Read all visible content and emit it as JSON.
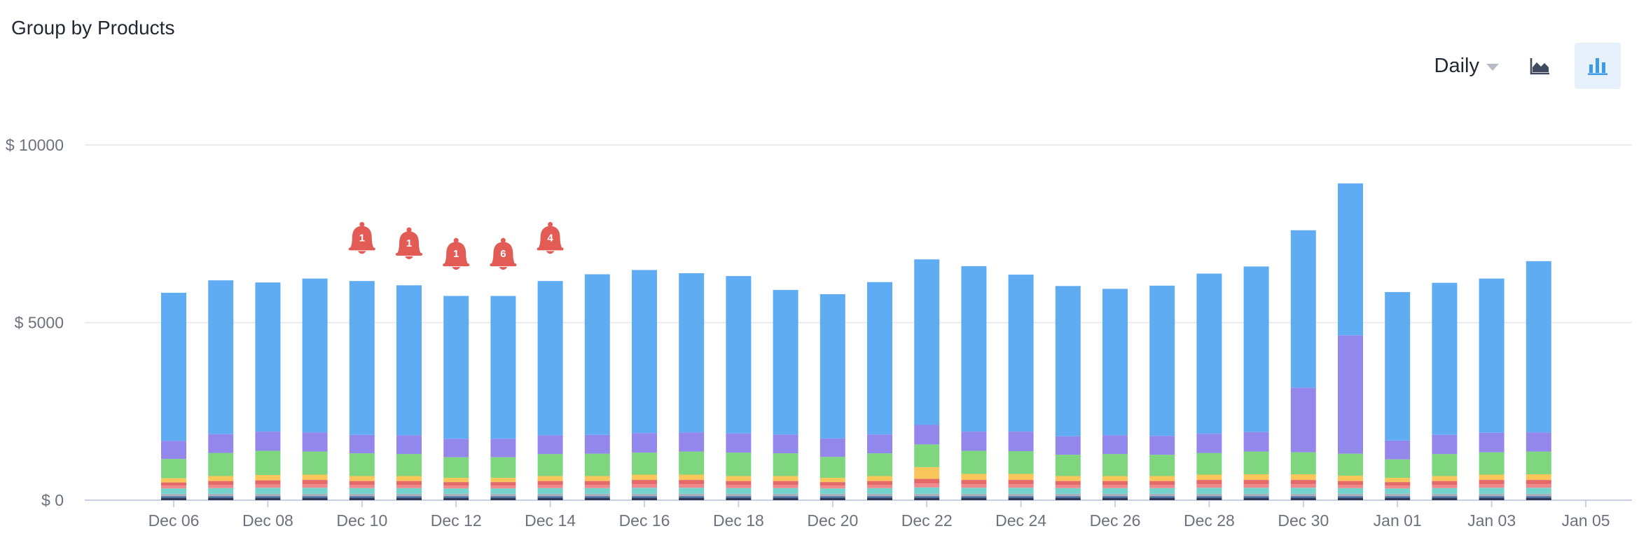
{
  "header": {
    "title": "Group by Products"
  },
  "controls": {
    "period_label": "Daily",
    "area_view_icon": "area-chart-icon",
    "bar_view_icon": "bar-chart-icon",
    "active_view": "bar"
  },
  "chart_data": {
    "type": "bar",
    "stacked": true,
    "title": "",
    "xlabel": "",
    "ylabel": "",
    "ylim": [
      0,
      11000
    ],
    "y_ticks": [
      {
        "value": 0,
        "label": "$ 0"
      },
      {
        "value": 5000,
        "label": "$ 5000"
      },
      {
        "value": 10000,
        "label": "$ 10000"
      }
    ],
    "grid": "horizontal",
    "categories": [
      "Dec 06",
      "Dec 07",
      "Dec 08",
      "Dec 09",
      "Dec 10",
      "Dec 11",
      "Dec 12",
      "Dec 13",
      "Dec 14",
      "Dec 15",
      "Dec 16",
      "Dec 17",
      "Dec 18",
      "Dec 19",
      "Dec 20",
      "Dec 21",
      "Dec 22",
      "Dec 23",
      "Dec 24",
      "Dec 25",
      "Dec 26",
      "Dec 27",
      "Dec 28",
      "Dec 29",
      "Dec 30",
      "Dec 31",
      "Jan 01",
      "Jan 02",
      "Jan 03",
      "Jan 04"
    ],
    "x_tick_labels": [
      {
        "index": 0,
        "label": "Dec 06"
      },
      {
        "index": 2,
        "label": "Dec 08"
      },
      {
        "index": 4,
        "label": "Dec 10"
      },
      {
        "index": 6,
        "label": "Dec 12"
      },
      {
        "index": 8,
        "label": "Dec 14"
      },
      {
        "index": 10,
        "label": "Dec 16"
      },
      {
        "index": 12,
        "label": "Dec 18"
      },
      {
        "index": 14,
        "label": "Dec 20"
      },
      {
        "index": 16,
        "label": "Dec 22"
      },
      {
        "index": 18,
        "label": "Dec 24"
      },
      {
        "index": 20,
        "label": "Dec 26"
      },
      {
        "index": 22,
        "label": "Dec 28"
      },
      {
        "index": 24,
        "label": "Dec 30"
      },
      {
        "index": 26,
        "label": "Jan 01"
      },
      {
        "index": 28,
        "label": "Jan 03"
      },
      {
        "index": 30,
        "label": "Jan 05"
      }
    ],
    "series": [
      {
        "color": "#2f3a57",
        "values": [
          60,
          60,
          60,
          60,
          60,
          60,
          60,
          60,
          60,
          60,
          60,
          60,
          60,
          60,
          60,
          60,
          60,
          60,
          60,
          60,
          60,
          60,
          60,
          60,
          60,
          60,
          60,
          60,
          60,
          60
        ]
      },
      {
        "color": "#4a6fa5",
        "values": [
          50,
          50,
          50,
          50,
          50,
          50,
          50,
          50,
          50,
          50,
          50,
          50,
          50,
          50,
          50,
          50,
          50,
          50,
          50,
          50,
          50,
          50,
          50,
          50,
          50,
          50,
          50,
          50,
          50,
          50
        ]
      },
      {
        "color": "#a9b1bd",
        "values": [
          70,
          70,
          70,
          70,
          70,
          70,
          70,
          70,
          70,
          70,
          70,
          70,
          70,
          70,
          70,
          70,
          70,
          70,
          70,
          70,
          70,
          70,
          70,
          70,
          70,
          70,
          70,
          70,
          70,
          70
        ]
      },
      {
        "color": "#74d4cd",
        "values": [
          150,
          160,
          170,
          170,
          160,
          160,
          150,
          150,
          160,
          160,
          170,
          170,
          160,
          160,
          150,
          160,
          180,
          170,
          170,
          160,
          160,
          160,
          170,
          170,
          170,
          160,
          150,
          160,
          170,
          170
        ]
      },
      {
        "color": "#f0878a",
        "values": [
          80,
          90,
          90,
          100,
          90,
          90,
          80,
          80,
          90,
          90,
          100,
          100,
          90,
          90,
          80,
          90,
          110,
          100,
          100,
          90,
          90,
          90,
          100,
          100,
          100,
          90,
          80,
          90,
          100,
          100
        ]
      },
      {
        "color": "#e46a6a",
        "values": [
          90,
          110,
          120,
          120,
          110,
          110,
          100,
          100,
          110,
          110,
          120,
          120,
          110,
          110,
          100,
          110,
          130,
          120,
          120,
          110,
          110,
          110,
          120,
          120,
          120,
          110,
          100,
          110,
          120,
          120
        ]
      },
      {
        "color": "#f8c65a",
        "values": [
          120,
          140,
          150,
          150,
          140,
          140,
          120,
          120,
          140,
          140,
          150,
          150,
          140,
          140,
          120,
          140,
          330,
          170,
          170,
          140,
          140,
          140,
          150,
          160,
          160,
          150,
          120,
          140,
          150,
          160
        ]
      },
      {
        "color": "#7ed67f",
        "values": [
          540,
          650,
          680,
          650,
          640,
          620,
          580,
          580,
          620,
          630,
          620,
          650,
          660,
          640,
          590,
          640,
          640,
          650,
          640,
          600,
          620,
          600,
          610,
          640,
          620,
          620,
          520,
          620,
          630,
          640
        ]
      },
      {
        "color": "#9487ec",
        "values": [
          510,
          530,
          540,
          540,
          520,
          530,
          520,
          520,
          530,
          530,
          550,
          540,
          540,
          530,
          520,
          530,
          550,
          540,
          550,
          520,
          530,
          530,
          540,
          550,
          1820,
          3330,
          530,
          540,
          550,
          540
        ]
      },
      {
        "color": "#60acf2",
        "values": [
          4170,
          4330,
          4200,
          4330,
          4330,
          4220,
          4020,
          4020,
          4340,
          4520,
          4590,
          4480,
          4430,
          4070,
          4060,
          4290,
          4660,
          4660,
          4420,
          4230,
          4120,
          4230,
          4510,
          4660,
          4430,
          4280,
          4180,
          4280,
          4340,
          4820
        ]
      }
    ],
    "annotations": [
      {
        "index": 4,
        "label": "1",
        "y": 7350
      },
      {
        "index": 5,
        "label": "1",
        "y": 7200
      },
      {
        "index": 6,
        "label": "1",
        "y": 6900
      },
      {
        "index": 7,
        "label": "6",
        "y": 6900
      },
      {
        "index": 8,
        "label": "4",
        "y": 7350
      }
    ],
    "annotation_color": "#e25b55"
  }
}
